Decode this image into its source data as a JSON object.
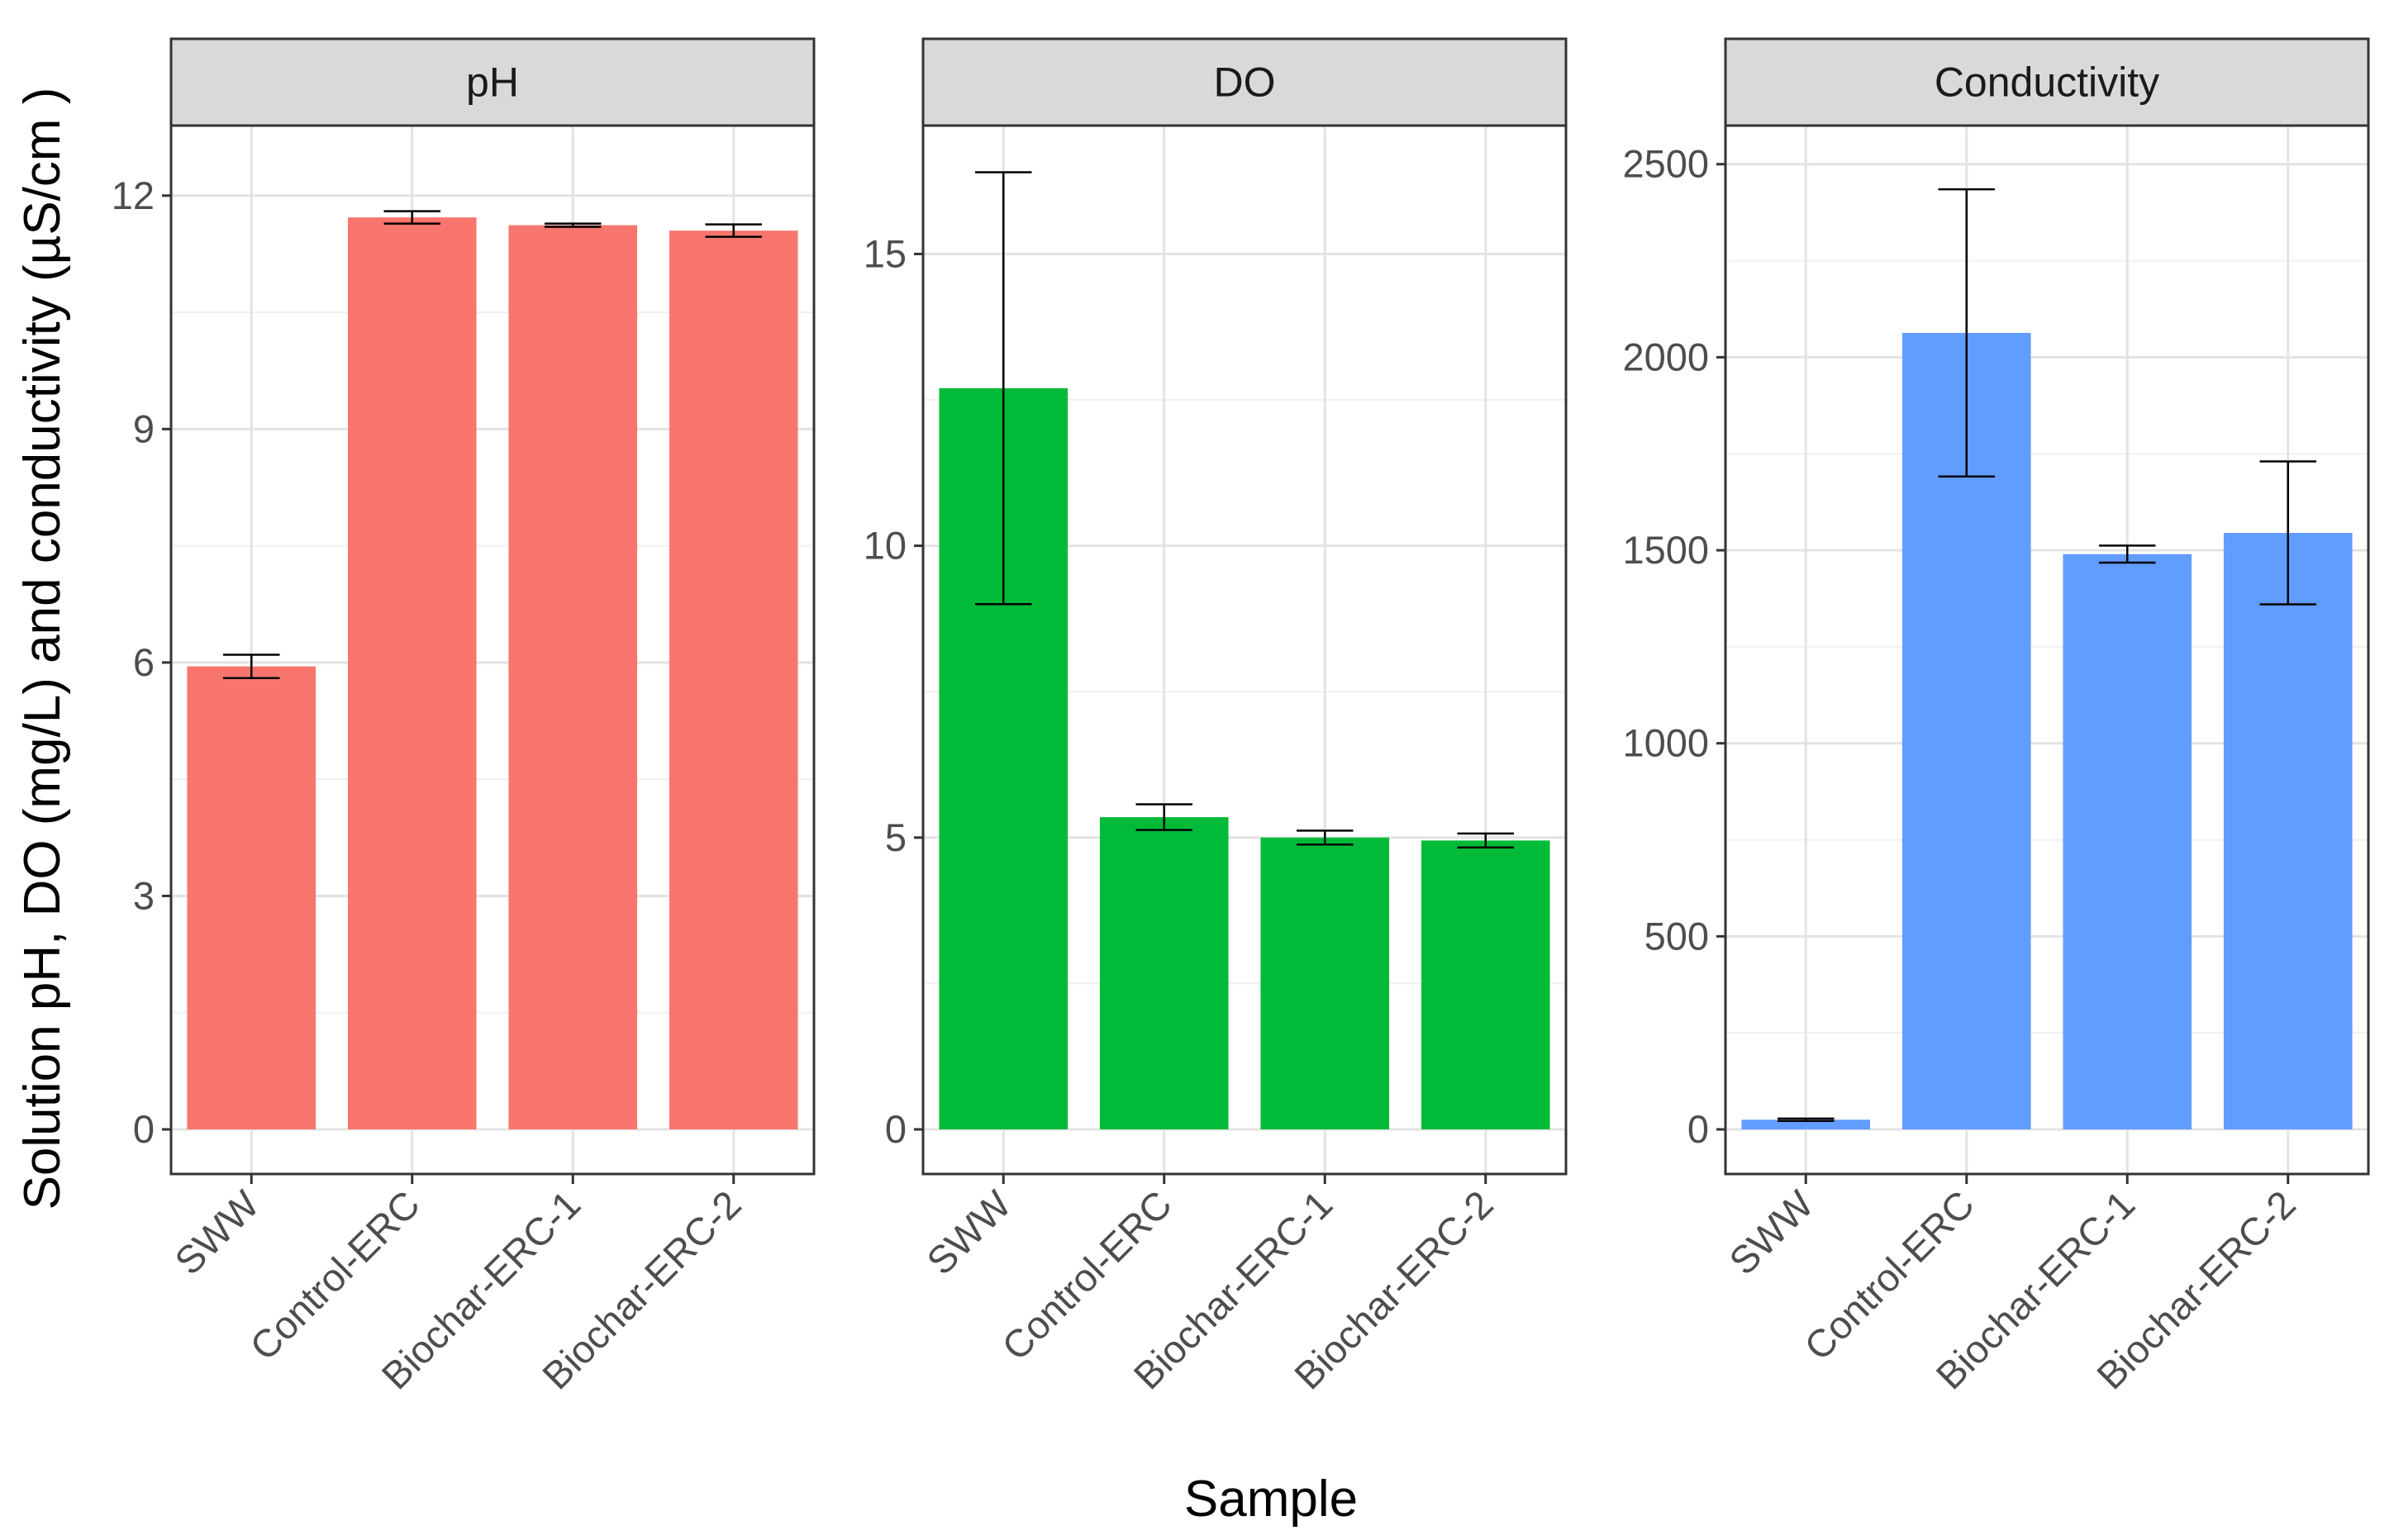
{
  "chart_data": {
    "type": "bar",
    "facet_layout": "3 panels side by side, shared x-axis categories",
    "xlabel": "Sample",
    "ylabel": "Solution pH, DO (mg/L) and conductivity (µS/cm )",
    "categories": [
      "SWW",
      "Control-ERC",
      "Biochar-ERC-1",
      "Biochar-ERC-2"
    ],
    "grid": true,
    "legend": "none",
    "panels": [
      {
        "title": "pH",
        "color": "#F8766D",
        "ylim": [
          0,
          12.9
        ],
        "yticks": [
          0,
          3,
          6,
          9,
          12
        ],
        "values": [
          5.95,
          11.72,
          11.62,
          11.55
        ],
        "errors": [
          0.15,
          0.08,
          0.02,
          0.08
        ]
      },
      {
        "title": "DO",
        "color": "#00BA38",
        "ylim": [
          0,
          17.2
        ],
        "yticks": [
          0,
          5,
          10,
          15
        ],
        "values": [
          12.7,
          5.35,
          5.0,
          4.95
        ],
        "errors": [
          3.7,
          0.22,
          0.12,
          0.12
        ]
      },
      {
        "title": "Conductivity",
        "color": "#619CFF",
        "ylim": [
          0,
          2600
        ],
        "yticks": [
          0,
          500,
          1000,
          1500,
          2000,
          2500
        ],
        "values": [
          25,
          2063,
          1490,
          1545
        ],
        "errors": [
          3,
          372,
          22,
          185
        ]
      }
    ]
  }
}
